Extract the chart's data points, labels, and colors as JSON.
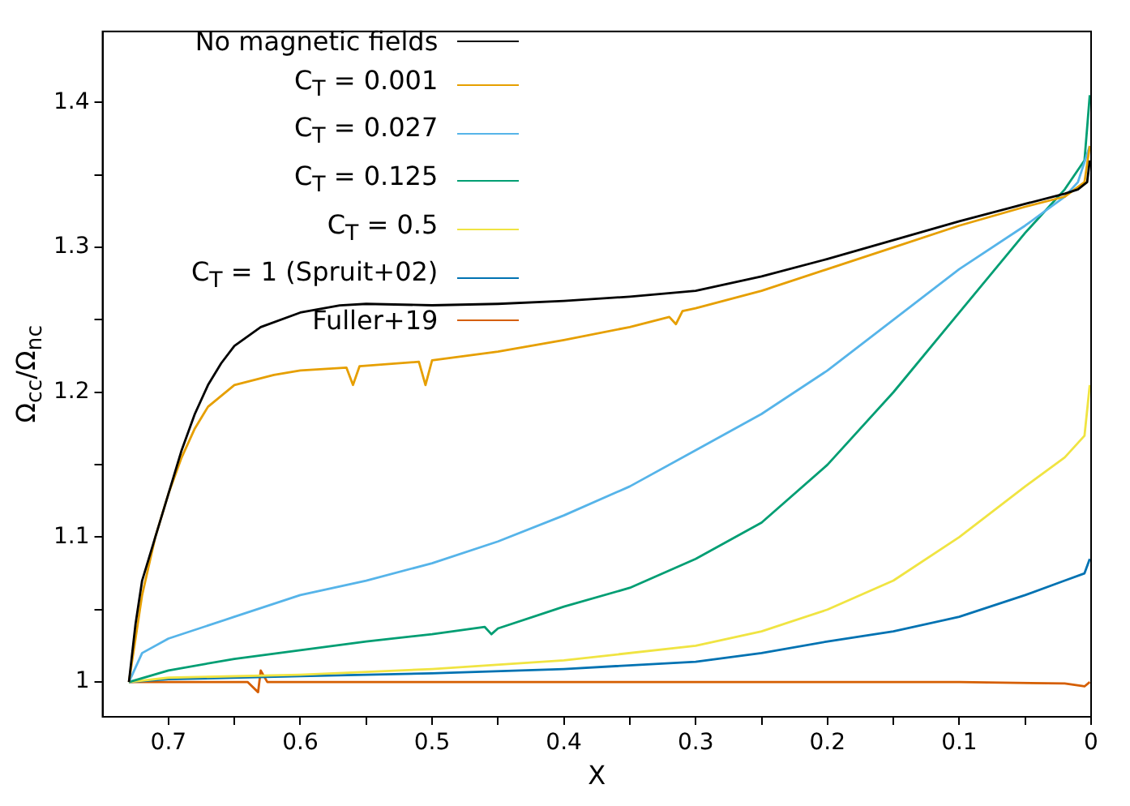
{
  "chart_data": {
    "type": "line",
    "xlabel": "X",
    "ylabel": "Ω$_{cc}$/Ω$_{nc}$",
    "xlim": [
      0.75,
      0
    ],
    "ylim": [
      0.976,
      1.449
    ],
    "xticks": [
      0.7,
      {
        "value": 0.65,
        "label": null
      },
      0.6,
      {
        "value": 0.55,
        "label": null
      },
      0.5,
      {
        "value": 0.45,
        "label": null
      },
      0.4,
      {
        "value": 0.35,
        "label": null
      },
      0.3,
      {
        "value": 0.25,
        "label": null
      },
      0.2,
      {
        "value": 0.15,
        "label": null
      },
      0.1,
      {
        "value": 0.05,
        "label": null
      },
      0
    ],
    "yticks": [
      1,
      {
        "value": 1.05,
        "label": null
      },
      1.1,
      {
        "value": 1.15,
        "label": null
      },
      1.2,
      {
        "value": 1.25,
        "label": null
      },
      1.3,
      {
        "value": 1.35,
        "label": null
      },
      1.4
    ],
    "grid": false,
    "legend": "top left",
    "marker": "none",
    "line_style": "solid",
    "series": [
      {
        "name": "No magnetic fields",
        "color": "#000000",
        "x": [
          0.73,
          0.725,
          0.72,
          0.71,
          0.7,
          0.69,
          0.68,
          0.67,
          0.66,
          0.65,
          0.63,
          0.6,
          0.57,
          0.55,
          0.5,
          0.45,
          0.4,
          0.35,
          0.3,
          0.25,
          0.2,
          0.15,
          0.1,
          0.05,
          0.02,
          0.01,
          0.003,
          0.001
        ],
        "values": [
          1.0,
          1.04,
          1.07,
          1.1,
          1.13,
          1.16,
          1.185,
          1.205,
          1.22,
          1.232,
          1.245,
          1.255,
          1.26,
          1.261,
          1.26,
          1.261,
          1.263,
          1.266,
          1.27,
          1.28,
          1.292,
          1.305,
          1.318,
          1.33,
          1.337,
          1.34,
          1.345,
          1.36
        ]
      },
      {
        "name": "C$_{T}$ = 0.001",
        "color": "#e69f00",
        "x": [
          0.73,
          0.72,
          0.71,
          0.7,
          0.69,
          0.68,
          0.67,
          0.65,
          0.62,
          0.6,
          0.565,
          0.56,
          0.555,
          0.51,
          0.505,
          0.5,
          0.45,
          0.4,
          0.35,
          0.32,
          0.315,
          0.31,
          0.3,
          0.25,
          0.2,
          0.15,
          0.1,
          0.05,
          0.02,
          0.005,
          0.001
        ],
        "values": [
          1.0,
          1.06,
          1.1,
          1.13,
          1.155,
          1.175,
          1.19,
          1.205,
          1.212,
          1.215,
          1.217,
          1.205,
          1.218,
          1.221,
          1.205,
          1.222,
          1.228,
          1.236,
          1.245,
          1.252,
          1.247,
          1.256,
          1.258,
          1.27,
          1.285,
          1.3,
          1.315,
          1.328,
          1.335,
          1.345,
          1.37
        ]
      },
      {
        "name": "C$_{T}$ = 0.027",
        "color": "#56b4e9",
        "x": [
          0.73,
          0.72,
          0.7,
          0.65,
          0.6,
          0.55,
          0.5,
          0.45,
          0.4,
          0.35,
          0.3,
          0.25,
          0.2,
          0.15,
          0.1,
          0.05,
          0.02,
          0.01,
          0.001
        ],
        "values": [
          1.0,
          1.02,
          1.03,
          1.045,
          1.06,
          1.07,
          1.082,
          1.097,
          1.115,
          1.135,
          1.16,
          1.185,
          1.215,
          1.25,
          1.285,
          1.315,
          1.335,
          1.345,
          1.37
        ]
      },
      {
        "name": "C$_{T}$ = 0.125",
        "color": "#009e73",
        "x": [
          0.73,
          0.7,
          0.65,
          0.6,
          0.55,
          0.5,
          0.46,
          0.455,
          0.45,
          0.4,
          0.35,
          0.3,
          0.25,
          0.2,
          0.15,
          0.1,
          0.05,
          0.02,
          0.005,
          0.001
        ],
        "values": [
          1.0,
          1.008,
          1.016,
          1.022,
          1.028,
          1.033,
          1.038,
          1.033,
          1.037,
          1.052,
          1.065,
          1.085,
          1.11,
          1.15,
          1.2,
          1.255,
          1.31,
          1.34,
          1.36,
          1.405
        ]
      },
      {
        "name": "C$_{T}$ = 0.5",
        "color": "#f0e442",
        "x": [
          0.73,
          0.7,
          0.6,
          0.5,
          0.4,
          0.3,
          0.25,
          0.2,
          0.15,
          0.1,
          0.05,
          0.02,
          0.005,
          0.001
        ],
        "values": [
          1.0,
          1.003,
          1.005,
          1.009,
          1.015,
          1.025,
          1.035,
          1.05,
          1.07,
          1.1,
          1.135,
          1.155,
          1.17,
          1.205
        ]
      },
      {
        "name": "C$_{T}$ = 1 (Spruit+02)",
        "color": "#0072b2",
        "x": [
          0.73,
          0.7,
          0.6,
          0.5,
          0.4,
          0.3,
          0.25,
          0.2,
          0.15,
          0.1,
          0.05,
          0.02,
          0.005,
          0.001
        ],
        "values": [
          1.0,
          1.002,
          1.004,
          1.006,
          1.009,
          1.014,
          1.02,
          1.028,
          1.035,
          1.045,
          1.06,
          1.07,
          1.075,
          1.085
        ]
      },
      {
        "name": "Fuller+19",
        "color": "#d55e00",
        "x": [
          0.73,
          0.64,
          0.632,
          0.63,
          0.625,
          0.5,
          0.3,
          0.1,
          0.02,
          0.005,
          0.001
        ],
        "values": [
          1.0,
          1.0,
          0.993,
          1.008,
          1.0,
          1.0,
          1.0,
          1.0,
          0.999,
          0.997,
          1.0
        ]
      }
    ]
  }
}
